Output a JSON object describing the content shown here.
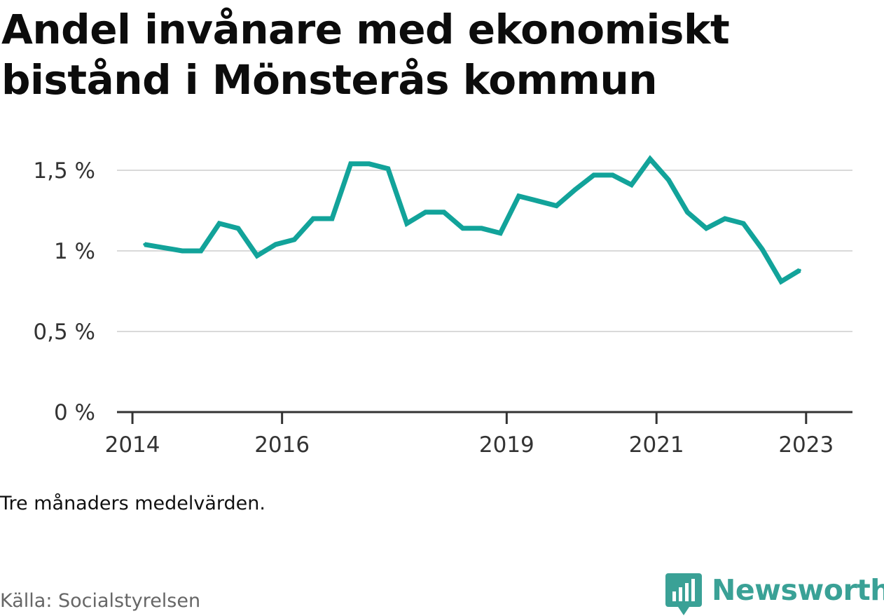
{
  "title": "Andel invånare med ekonomiskt bistånd i Mönsterås kommun",
  "note": "Tre månaders medelvärden.",
  "source": "Källa: Socialstyrelsen",
  "brand": {
    "name": "Newsworthy",
    "color": "#3aa196",
    "icon": "newsworthy-logo-icon"
  },
  "colors": {
    "line": "#12a39a",
    "grid": "#d9d9d9",
    "axis": "#333333"
  },
  "chart_data": {
    "type": "line",
    "title": "Andel invånare med ekonomiskt bistånd i Mönsterås kommun",
    "xlabel": "",
    "ylabel": "",
    "ylim": [
      0,
      1.6
    ],
    "xlim": [
      "2013-12-01",
      "2023-05-15"
    ],
    "yticks": [
      {
        "value": 0,
        "label": "0 %"
      },
      {
        "value": 0.5,
        "label": "0,5 %"
      },
      {
        "value": 1,
        "label": "1 %"
      },
      {
        "value": 1.5,
        "label": "1,5 %"
      }
    ],
    "xticks": [
      {
        "value": "2014-01-01",
        "label": "2014"
      },
      {
        "value": "2016-01-01",
        "label": "2016"
      },
      {
        "value": "2019-01-01",
        "label": "2019"
      },
      {
        "value": "2021-01-01",
        "label": "2021"
      },
      {
        "value": "2023-01-01",
        "label": "2023"
      }
    ],
    "grid": true,
    "legend": "none",
    "series": [
      {
        "values": [
          {
            "x": "2014-03",
            "y": 1.04
          },
          {
            "x": "2014-06",
            "y": 1.02
          },
          {
            "x": "2014-09",
            "y": 1.0
          },
          {
            "x": "2014-12",
            "y": 1.0
          },
          {
            "x": "2015-03",
            "y": 1.17
          },
          {
            "x": "2015-06",
            "y": 1.14
          },
          {
            "x": "2015-09",
            "y": 0.97
          },
          {
            "x": "2015-12",
            "y": 1.04
          },
          {
            "x": "2016-03",
            "y": 1.07
          },
          {
            "x": "2016-06",
            "y": 1.2
          },
          {
            "x": "2016-09",
            "y": 1.2
          },
          {
            "x": "2016-12",
            "y": 1.54
          },
          {
            "x": "2017-03",
            "y": 1.54
          },
          {
            "x": "2017-06",
            "y": 1.51
          },
          {
            "x": "2017-09",
            "y": 1.17
          },
          {
            "x": "2017-12",
            "y": 1.24
          },
          {
            "x": "2018-03",
            "y": 1.24
          },
          {
            "x": "2018-06",
            "y": 1.14
          },
          {
            "x": "2018-09",
            "y": 1.14
          },
          {
            "x": "2018-12",
            "y": 1.11
          },
          {
            "x": "2019-03",
            "y": 1.34
          },
          {
            "x": "2019-06",
            "y": 1.31
          },
          {
            "x": "2019-09",
            "y": 1.28
          },
          {
            "x": "2019-12",
            "y": 1.38
          },
          {
            "x": "2020-03",
            "y": 1.47
          },
          {
            "x": "2020-06",
            "y": 1.47
          },
          {
            "x": "2020-09",
            "y": 1.41
          },
          {
            "x": "2020-12",
            "y": 1.57
          },
          {
            "x": "2021-03",
            "y": 1.44
          },
          {
            "x": "2021-06",
            "y": 1.24
          },
          {
            "x": "2021-09",
            "y": 1.14
          },
          {
            "x": "2021-12",
            "y": 1.2
          },
          {
            "x": "2022-03",
            "y": 1.17
          },
          {
            "x": "2022-06",
            "y": 1.01
          },
          {
            "x": "2022-09",
            "y": 0.81
          },
          {
            "x": "2022-12",
            "y": 0.88
          }
        ]
      }
    ]
  }
}
